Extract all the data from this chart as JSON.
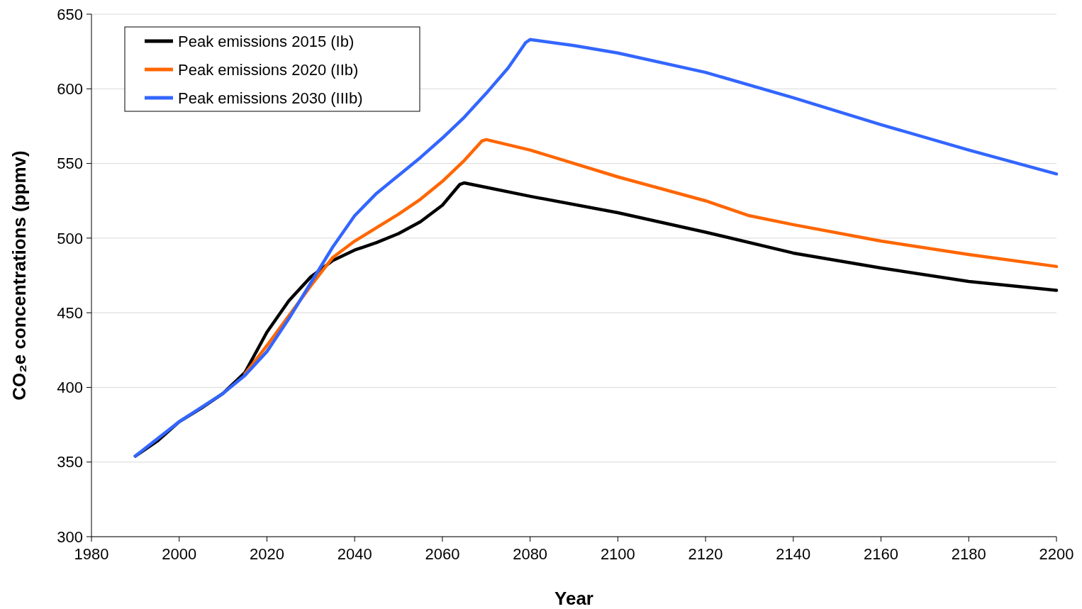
{
  "chart_data": {
    "type": "line",
    "xlabel": "Year",
    "ylabel": "CO₂e concentrations (ppmv)",
    "xlim": [
      1980,
      2200
    ],
    "xticks": [
      1980,
      2000,
      2020,
      2040,
      2060,
      2080,
      2100,
      2120,
      2140,
      2160,
      2180,
      2200
    ],
    "ylim": [
      300,
      650
    ],
    "yticks": [
      300,
      350,
      400,
      450,
      500,
      550,
      600,
      650
    ],
    "grid": "y",
    "legend": "top left",
    "marker": "none",
    "line_style": "solid",
    "series": [
      {
        "name": "Peak emissions 2015 (Ib)",
        "color": "#000000",
        "x": [
          1990,
          1995,
          2000,
          2005,
          2010,
          2015,
          2020,
          2025,
          2030,
          2035,
          2040,
          2045,
          2050,
          2055,
          2060,
          2064,
          2065,
          2070,
          2080,
          2100,
          2120,
          2140,
          2160,
          2180,
          2200
        ],
        "values": [
          354,
          364,
          377,
          386,
          396,
          410,
          437,
          458,
          474,
          485,
          492,
          497,
          503,
          511,
          522,
          536,
          537,
          534,
          528,
          517,
          504,
          490,
          480,
          471,
          465
        ]
      },
      {
        "name": "Peak emissions 2020 (IIb)",
        "color": "#ff6600",
        "x": [
          2015,
          2020,
          2025,
          2030,
          2035,
          2040,
          2045,
          2050,
          2055,
          2060,
          2065,
          2069,
          2070,
          2080,
          2100,
          2120,
          2130,
          2140,
          2160,
          2180,
          2200
        ],
        "values": [
          409,
          428,
          448,
          468,
          487,
          498,
          507,
          516,
          526,
          538,
          552,
          565,
          566,
          559,
          541,
          525,
          515,
          509,
          498,
          489,
          481
        ]
      },
      {
        "name": "Peak emissions 2030 (IIIb)",
        "color": "#3366ff",
        "x": [
          1990,
          2000,
          2010,
          2015,
          2020,
          2025,
          2030,
          2035,
          2040,
          2045,
          2050,
          2055,
          2060,
          2065,
          2070,
          2075,
          2079,
          2080,
          2090,
          2100,
          2120,
          2140,
          2160,
          2180,
          2200
        ],
        "values": [
          354,
          377,
          396,
          408,
          424,
          446,
          470,
          494,
          515,
          530,
          542,
          554,
          567,
          581,
          597,
          614,
          631,
          633,
          629,
          624,
          611,
          594,
          576,
          559,
          543
        ]
      }
    ]
  }
}
